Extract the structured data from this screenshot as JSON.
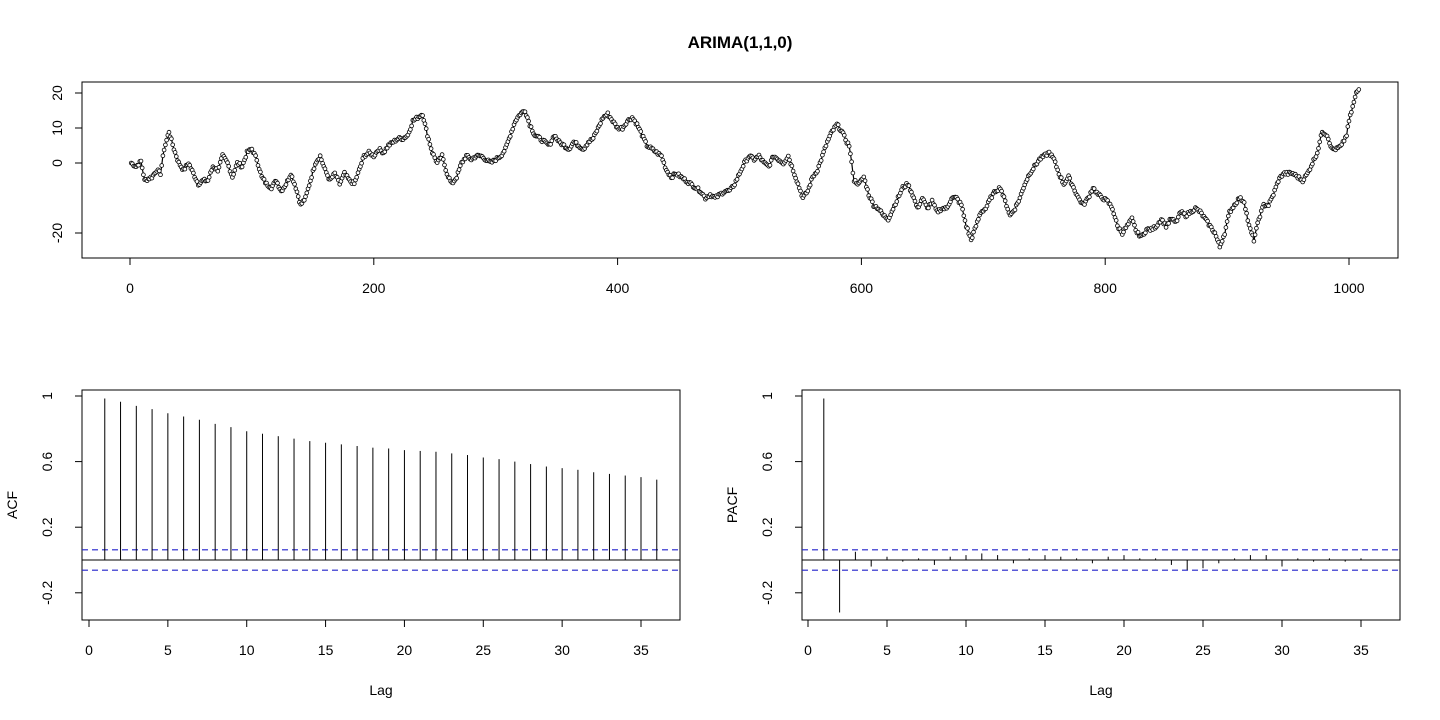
{
  "figure": {
    "title": "ARIMA(1,1,0)"
  },
  "chart_data": [
    {
      "id": "series",
      "type": "line",
      "title": "ARIMA(1,1,0)",
      "xlabel": "",
      "ylabel": "",
      "xlim": [
        0,
        1000
      ],
      "ylim": [
        -25,
        22
      ],
      "xticks": [
        0,
        200,
        400,
        600,
        800,
        1000
      ],
      "yticks": [
        -20,
        0,
        10,
        20
      ],
      "markers": "open-circle",
      "keypoints": [
        [
          1,
          0
        ],
        [
          5,
          -1
        ],
        [
          9,
          0.5
        ],
        [
          12,
          -5
        ],
        [
          18,
          -4
        ],
        [
          22,
          -2
        ],
        [
          25,
          -3
        ],
        [
          28,
          4
        ],
        [
          32,
          9
        ],
        [
          36,
          4
        ],
        [
          40,
          0
        ],
        [
          44,
          -2
        ],
        [
          48,
          0
        ],
        [
          52,
          -3
        ],
        [
          56,
          -6
        ],
        [
          60,
          -5
        ],
        [
          64,
          -5
        ],
        [
          68,
          -1
        ],
        [
          72,
          -2
        ],
        [
          76,
          2
        ],
        [
          80,
          0
        ],
        [
          84,
          -4
        ],
        [
          88,
          0
        ],
        [
          92,
          -1
        ],
        [
          96,
          3
        ],
        [
          100,
          4
        ],
        [
          104,
          1
        ],
        [
          108,
          -4
        ],
        [
          112,
          -6
        ],
        [
          116,
          -7
        ],
        [
          120,
          -5
        ],
        [
          124,
          -8
        ],
        [
          128,
          -6
        ],
        [
          132,
          -3
        ],
        [
          136,
          -7
        ],
        [
          140,
          -12
        ],
        [
          144,
          -10
        ],
        [
          148,
          -5
        ],
        [
          152,
          0
        ],
        [
          156,
          2
        ],
        [
          160,
          -2
        ],
        [
          164,
          -5
        ],
        [
          168,
          -3
        ],
        [
          172,
          -6
        ],
        [
          176,
          -3
        ],
        [
          180,
          -5
        ],
        [
          184,
          -6
        ],
        [
          188,
          -2
        ],
        [
          192,
          2
        ],
        [
          196,
          3
        ],
        [
          200,
          2
        ],
        [
          204,
          4
        ],
        [
          208,
          3
        ],
        [
          212,
          5
        ],
        [
          216,
          6
        ],
        [
          220,
          7
        ],
        [
          224,
          7
        ],
        [
          228,
          8
        ],
        [
          232,
          12
        ],
        [
          236,
          13
        ],
        [
          240,
          14
        ],
        [
          244,
          8
        ],
        [
          248,
          3
        ],
        [
          252,
          0
        ],
        [
          256,
          2
        ],
        [
          260,
          -3
        ],
        [
          264,
          -6
        ],
        [
          268,
          -4
        ],
        [
          272,
          0
        ],
        [
          276,
          2
        ],
        [
          280,
          1
        ],
        [
          284,
          2
        ],
        [
          288,
          2
        ],
        [
          292,
          1
        ],
        [
          296,
          0
        ],
        [
          300,
          1
        ],
        [
          304,
          2
        ],
        [
          308,
          4
        ],
        [
          312,
          8
        ],
        [
          316,
          12
        ],
        [
          320,
          14
        ],
        [
          324,
          15
        ],
        [
          328,
          11
        ],
        [
          332,
          8
        ],
        [
          336,
          7
        ],
        [
          340,
          6
        ],
        [
          344,
          5
        ],
        [
          348,
          8
        ],
        [
          352,
          6
        ],
        [
          356,
          5
        ],
        [
          360,
          4
        ],
        [
          364,
          6
        ],
        [
          368,
          5
        ],
        [
          372,
          4
        ],
        [
          376,
          6
        ],
        [
          380,
          7
        ],
        [
          384,
          10
        ],
        [
          388,
          13
        ],
        [
          392,
          14
        ],
        [
          396,
          12
        ],
        [
          400,
          10
        ],
        [
          404,
          10
        ],
        [
          408,
          12
        ],
        [
          412,
          13
        ],
        [
          416,
          11
        ],
        [
          420,
          8
        ],
        [
          424,
          5
        ],
        [
          428,
          4
        ],
        [
          432,
          3
        ],
        [
          436,
          2
        ],
        [
          440,
          -2
        ],
        [
          444,
          -4
        ],
        [
          448,
          -3
        ],
        [
          452,
          -4
        ],
        [
          456,
          -5
        ],
        [
          460,
          -6
        ],
        [
          464,
          -7
        ],
        [
          468,
          -8
        ],
        [
          472,
          -10
        ],
        [
          476,
          -9
        ],
        [
          480,
          -10
        ],
        [
          484,
          -9
        ],
        [
          488,
          -8
        ],
        [
          492,
          -8
        ],
        [
          496,
          -6
        ],
        [
          500,
          -3
        ],
        [
          504,
          0
        ],
        [
          508,
          2
        ],
        [
          512,
          1
        ],
        [
          516,
          2
        ],
        [
          520,
          0
        ],
        [
          524,
          -1
        ],
        [
          528,
          2
        ],
        [
          532,
          1
        ],
        [
          536,
          0
        ],
        [
          540,
          2
        ],
        [
          544,
          -2
        ],
        [
          548,
          -6
        ],
        [
          552,
          -10
        ],
        [
          556,
          -8
        ],
        [
          560,
          -4
        ],
        [
          564,
          -2
        ],
        [
          568,
          2
        ],
        [
          572,
          6
        ],
        [
          576,
          9
        ],
        [
          580,
          11
        ],
        [
          584,
          9
        ],
        [
          588,
          6
        ],
        [
          590,
          5
        ],
        [
          594,
          -5
        ],
        [
          598,
          -6
        ],
        [
          602,
          -4
        ],
        [
          606,
          -9
        ],
        [
          610,
          -12
        ],
        [
          614,
          -13
        ],
        [
          618,
          -15
        ],
        [
          622,
          -16
        ],
        [
          626,
          -13
        ],
        [
          630,
          -10
        ],
        [
          634,
          -7
        ],
        [
          638,
          -6
        ],
        [
          642,
          -9
        ],
        [
          646,
          -13
        ],
        [
          650,
          -10
        ],
        [
          654,
          -13
        ],
        [
          658,
          -11
        ],
        [
          662,
          -14
        ],
        [
          666,
          -13
        ],
        [
          670,
          -13
        ],
        [
          674,
          -10
        ],
        [
          678,
          -10
        ],
        [
          682,
          -12
        ],
        [
          686,
          -18
        ],
        [
          690,
          -22
        ],
        [
          694,
          -18
        ],
        [
          698,
          -14
        ],
        [
          702,
          -13
        ],
        [
          706,
          -10
        ],
        [
          710,
          -8
        ],
        [
          714,
          -7
        ],
        [
          718,
          -11
        ],
        [
          722,
          -15
        ],
        [
          726,
          -13
        ],
        [
          730,
          -10
        ],
        [
          734,
          -6
        ],
        [
          738,
          -3
        ],
        [
          742,
          -1
        ],
        [
          746,
          1
        ],
        [
          750,
          2
        ],
        [
          754,
          3
        ],
        [
          758,
          1
        ],
        [
          762,
          -3
        ],
        [
          766,
          -6
        ],
        [
          770,
          -4
        ],
        [
          774,
          -7
        ],
        [
          778,
          -10
        ],
        [
          782,
          -12
        ],
        [
          786,
          -10
        ],
        [
          790,
          -7
        ],
        [
          794,
          -9
        ],
        [
          798,
          -10
        ],
        [
          802,
          -11
        ],
        [
          806,
          -13
        ],
        [
          810,
          -18
        ],
        [
          814,
          -20
        ],
        [
          818,
          -18
        ],
        [
          822,
          -16
        ],
        [
          826,
          -20
        ],
        [
          830,
          -21
        ],
        [
          834,
          -19
        ],
        [
          838,
          -19
        ],
        [
          842,
          -18
        ],
        [
          846,
          -16
        ],
        [
          850,
          -18
        ],
        [
          854,
          -16
        ],
        [
          858,
          -17
        ],
        [
          862,
          -14
        ],
        [
          866,
          -15
        ],
        [
          870,
          -14
        ],
        [
          874,
          -13
        ],
        [
          878,
          -14
        ],
        [
          882,
          -16
        ],
        [
          886,
          -18
        ],
        [
          890,
          -20
        ],
        [
          894,
          -24
        ],
        [
          898,
          -20
        ],
        [
          902,
          -14
        ],
        [
          906,
          -12
        ],
        [
          910,
          -10
        ],
        [
          914,
          -11
        ],
        [
          918,
          -18
        ],
        [
          922,
          -22
        ],
        [
          926,
          -16
        ],
        [
          930,
          -12
        ],
        [
          934,
          -12
        ],
        [
          938,
          -9
        ],
        [
          942,
          -5
        ],
        [
          946,
          -3
        ],
        [
          950,
          -3
        ],
        [
          954,
          -3
        ],
        [
          958,
          -4
        ],
        [
          962,
          -5
        ],
        [
          966,
          -3
        ],
        [
          970,
          0
        ],
        [
          974,
          3
        ],
        [
          978,
          9
        ],
        [
          982,
          8
        ],
        [
          986,
          4
        ],
        [
          990,
          4
        ],
        [
          994,
          5
        ],
        [
          998,
          8
        ],
        [
          1000,
          12
        ],
        [
          1003,
          16
        ],
        [
          1006,
          20
        ],
        [
          1008,
          21
        ]
      ]
    },
    {
      "id": "acf",
      "type": "bar",
      "title": "",
      "xlabel": "Lag",
      "ylabel": "ACF",
      "xlim": [
        0,
        36
      ],
      "ylim": [
        -0.3,
        1.0
      ],
      "xticks": [
        0,
        5,
        10,
        15,
        20,
        25,
        30,
        35
      ],
      "yticks": [
        -0.2,
        0.2,
        0.6,
        1.0
      ],
      "lags": [
        1,
        2,
        3,
        4,
        5,
        6,
        7,
        8,
        9,
        10,
        11,
        12,
        13,
        14,
        15,
        16,
        17,
        18,
        19,
        20,
        21,
        22,
        23,
        24,
        25,
        26,
        27,
        28,
        29,
        30,
        31,
        32,
        33,
        34,
        35,
        36
      ],
      "values": [
        0.985,
        0.965,
        0.94,
        0.92,
        0.895,
        0.875,
        0.855,
        0.83,
        0.81,
        0.785,
        0.77,
        0.755,
        0.74,
        0.725,
        0.715,
        0.705,
        0.695,
        0.685,
        0.68,
        0.67,
        0.665,
        0.66,
        0.65,
        0.64,
        0.625,
        0.615,
        0.6,
        0.585,
        0.57,
        0.56,
        0.55,
        0.535,
        0.525,
        0.515,
        0.505,
        0.49
      ],
      "ci": 0.062
    },
    {
      "id": "pacf",
      "type": "bar",
      "title": "",
      "xlabel": "Lag",
      "ylabel": "PACF",
      "xlim": [
        0,
        36
      ],
      "ylim": [
        -0.3,
        1.0
      ],
      "xticks": [
        0,
        5,
        10,
        15,
        20,
        25,
        30,
        35
      ],
      "yticks": [
        -0.2,
        0.2,
        0.6,
        1.0
      ],
      "lags": [
        1,
        2,
        3,
        4,
        5,
        6,
        7,
        8,
        9,
        10,
        11,
        12,
        13,
        14,
        15,
        16,
        17,
        18,
        19,
        20,
        21,
        22,
        23,
        24,
        25,
        26,
        27,
        28,
        29,
        30,
        31,
        32,
        33,
        34,
        35,
        36
      ],
      "values": [
        0.985,
        -0.32,
        0.05,
        -0.04,
        0.02,
        -0.01,
        0.01,
        -0.03,
        0.02,
        0.03,
        0.04,
        0.03,
        -0.02,
        0.01,
        0.03,
        0.02,
        0.01,
        -0.02,
        0.02,
        0.03,
        0.01,
        0.01,
        -0.03,
        -0.06,
        -0.05,
        -0.02,
        0.01,
        0.03,
        0.03,
        -0.04,
        0.01,
        -0.01,
        0.01,
        -0.01,
        0.01,
        0.0
      ],
      "ci": 0.062
    }
  ]
}
